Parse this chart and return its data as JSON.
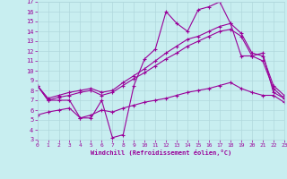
{
  "xlabel": "Windchill (Refroidissement éolien,°C)",
  "background_color": "#c8eef0",
  "grid_color": "#b0d8dc",
  "line_color": "#990099",
  "xlim": [
    0,
    23
  ],
  "ylim": [
    3,
    17
  ],
  "xticks": [
    0,
    1,
    2,
    3,
    4,
    5,
    6,
    7,
    8,
    9,
    10,
    11,
    12,
    13,
    14,
    15,
    16,
    17,
    18,
    19,
    20,
    21,
    22,
    23
  ],
  "yticks": [
    3,
    4,
    5,
    6,
    7,
    8,
    9,
    10,
    11,
    12,
    13,
    14,
    15,
    16,
    17
  ],
  "series1_x": [
    0,
    1,
    2,
    3,
    4,
    5,
    6,
    7,
    8,
    9,
    10,
    11,
    12,
    13,
    14,
    15,
    16,
    17,
    18,
    19,
    20,
    21,
    22,
    23
  ],
  "series1_y": [
    8.5,
    7.0,
    7.0,
    7.0,
    5.2,
    5.2,
    7.0,
    3.2,
    3.5,
    8.5,
    11.2,
    12.2,
    16.0,
    14.8,
    14.0,
    16.2,
    16.5,
    17.0,
    14.8,
    11.5,
    11.5,
    11.8,
    7.8,
    7.2
  ],
  "series2_x": [
    0,
    1,
    2,
    3,
    4,
    5,
    6,
    7,
    8,
    9,
    10,
    11,
    12,
    13,
    14,
    15,
    16,
    17,
    18,
    19,
    20,
    21,
    22,
    23
  ],
  "series2_y": [
    8.5,
    7.2,
    7.5,
    7.8,
    8.0,
    8.2,
    7.8,
    8.0,
    8.8,
    9.5,
    10.2,
    11.0,
    11.8,
    12.5,
    13.2,
    13.5,
    14.0,
    14.5,
    14.8,
    13.8,
    11.8,
    11.5,
    8.5,
    7.5
  ],
  "series3_x": [
    0,
    1,
    2,
    3,
    4,
    5,
    6,
    7,
    8,
    9,
    10,
    11,
    12,
    13,
    14,
    15,
    16,
    17,
    18,
    19,
    20,
    21,
    22,
    23
  ],
  "series3_y": [
    8.5,
    7.0,
    7.3,
    7.5,
    7.8,
    8.0,
    7.5,
    7.8,
    8.5,
    9.2,
    9.8,
    10.5,
    11.2,
    11.8,
    12.5,
    13.0,
    13.5,
    14.0,
    14.2,
    13.5,
    11.5,
    11.0,
    8.2,
    7.2
  ],
  "series4_x": [
    0,
    1,
    2,
    3,
    4,
    5,
    6,
    7,
    8,
    9,
    10,
    11,
    12,
    13,
    14,
    15,
    16,
    17,
    18,
    19,
    20,
    21,
    22,
    23
  ],
  "series4_y": [
    5.5,
    5.8,
    6.0,
    6.2,
    5.2,
    5.5,
    6.0,
    5.8,
    6.2,
    6.5,
    6.8,
    7.0,
    7.2,
    7.5,
    7.8,
    8.0,
    8.2,
    8.5,
    8.8,
    8.2,
    7.8,
    7.5,
    7.5,
    6.8
  ]
}
